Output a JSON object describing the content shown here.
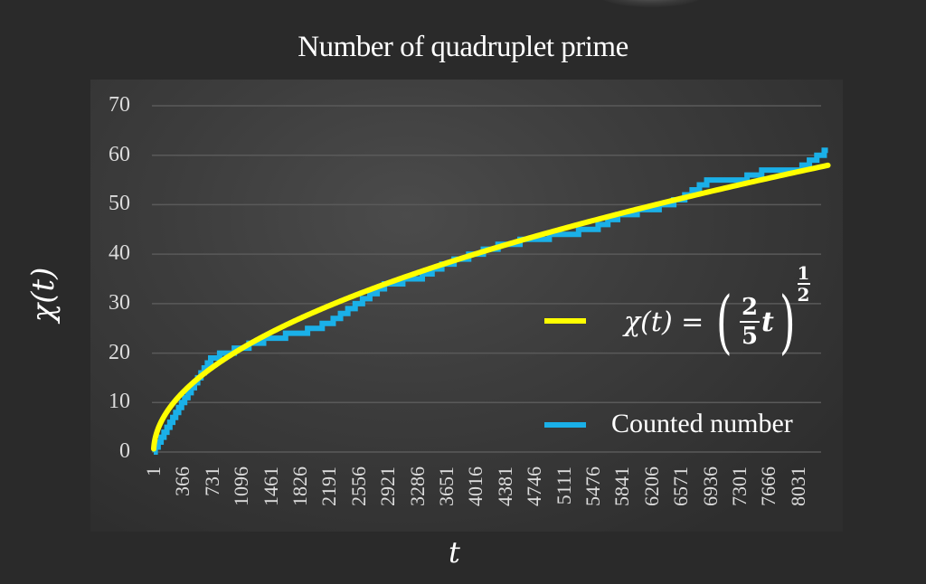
{
  "chart_data": {
    "type": "line",
    "title": "Number of quadruplet prime",
    "xlabel": "t",
    "ylabel": "χ(t)",
    "ylim": [
      0,
      70
    ],
    "yticks": [
      0,
      10,
      20,
      30,
      40,
      50,
      60,
      70
    ],
    "x_tick_labels": [
      "1",
      "366",
      "731",
      "1096",
      "1461",
      "1826",
      "2191",
      "2556",
      "2921",
      "3286",
      "3651",
      "4016",
      "4381",
      "4746",
      "5111",
      "5476",
      "5841",
      "6206",
      "6571",
      "6936",
      "7301",
      "7666",
      "8031"
    ],
    "grid": {
      "horizontal": true,
      "vertical": false
    },
    "legend_position": "inside-right",
    "series": [
      {
        "name": "χ(t) = (2/5 t)^(1/2)",
        "color": "#ffff00",
        "formula": "sqrt(0.4*t)",
        "x": [
          1,
          366,
          731,
          1096,
          1461,
          1826,
          2191,
          2556,
          2921,
          3286,
          3651,
          4016,
          4381,
          4746,
          5111,
          5476,
          5841,
          6206,
          6571,
          6936,
          7301,
          7666,
          8031,
          8400
        ],
        "values": [
          0.6,
          12.1,
          17.1,
          20.9,
          24.2,
          27.0,
          29.6,
          32.0,
          34.2,
          36.3,
          38.2,
          40.1,
          41.9,
          43.6,
          45.2,
          46.8,
          48.3,
          49.8,
          51.3,
          52.7,
          54.0,
          55.4,
          56.7,
          58.0
        ]
      },
      {
        "name": "Counted number",
        "color": "#1ab0e8",
        "x": [
          1,
          366,
          731,
          1096,
          1461,
          1826,
          2191,
          2556,
          2921,
          3286,
          3651,
          4016,
          4381,
          4746,
          5111,
          5476,
          5841,
          6206,
          6571,
          6936,
          7301,
          7666,
          8031,
          8400
        ],
        "values": [
          0,
          10,
          19,
          21,
          23,
          24,
          26,
          30,
          34,
          35,
          38,
          40,
          42,
          43,
          44,
          45,
          48,
          49,
          51,
          55,
          55,
          57,
          57,
          61
        ]
      }
    ]
  },
  "labels": {
    "title": "Number of quadruplet prime",
    "ylabel": "χ(t)",
    "xlabel": "t",
    "legend_fit_lhs": "χ(t) =",
    "legend_fit_num": "2",
    "legend_fit_den": "5",
    "legend_fit_var": "t",
    "legend_fit_exp_num": "1",
    "legend_fit_exp_den": "2",
    "legend_counted": "Counted number"
  }
}
